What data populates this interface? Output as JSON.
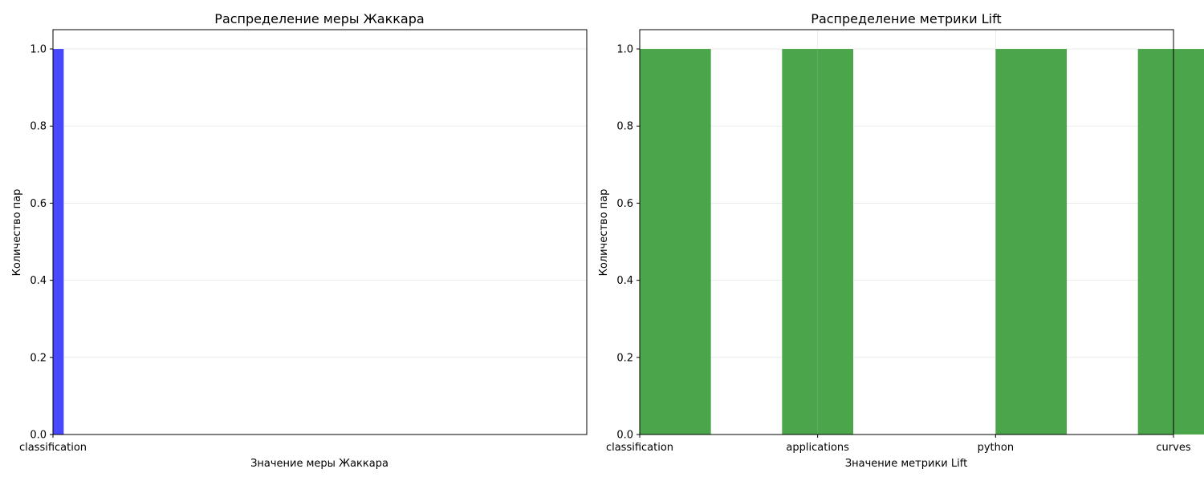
{
  "chart_data": [
    {
      "type": "bar",
      "title": "Распределение меры Жаккара",
      "xlabel": "Значение меры Жаккара",
      "ylabel": "Количество пар",
      "categories": [
        "classification"
      ],
      "values": [
        1
      ],
      "ylim": [
        0,
        1.05
      ],
      "yticks": [
        "0.0",
        "0.2",
        "0.4",
        "0.6",
        "0.8",
        "1.0"
      ],
      "color": "#4848ff",
      "grid": true
    },
    {
      "type": "bar",
      "title": "Распределение метрики Lift",
      "xlabel": "Значение метрики Lift",
      "ylabel": "Количество пар",
      "categories": [
        "classification",
        "applications",
        "python",
        "curves"
      ],
      "values": [
        1,
        1,
        1,
        1
      ],
      "ylim": [
        0,
        1.05
      ],
      "yticks": [
        "0.0",
        "0.2",
        "0.4",
        "0.6",
        "0.8",
        "1.0"
      ],
      "color": "#4ba64b",
      "grid": true
    }
  ]
}
